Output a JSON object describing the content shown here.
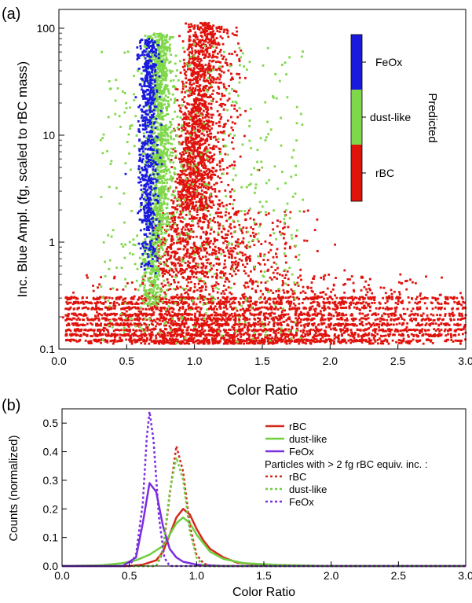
{
  "chart_data": [
    {
      "panel_label": "(a)",
      "type": "scatter",
      "xlabel": "Color Ratio",
      "ylabel": "Inc. Blue Ampl. (fg, scaled to rBC mass)",
      "xlim": [
        0.0,
        3.0
      ],
      "ylim": [
        0.1,
        150
      ],
      "yscale": "log",
      "x_ticks": [
        "0.0",
        "0.5",
        "1.0",
        "1.5",
        "2.0",
        "2.5",
        "3.0"
      ],
      "y_ticks": [
        "0.1",
        "1",
        "10",
        "100"
      ],
      "colorbar": {
        "title": "Predicted",
        "categories": [
          {
            "label": "FeOx",
            "color": "#1a1adf"
          },
          {
            "label": "dust-like",
            "color": "#7fd84a"
          },
          {
            "label": "rBC",
            "color": "#e0120c"
          }
        ]
      },
      "series": [
        {
          "name": "rBC",
          "color": "#e0120c",
          "x_range": [
            0.05,
            3.0
          ],
          "y_range": [
            0.11,
            120
          ],
          "peak_x": 0.95
        },
        {
          "name": "dust-like",
          "color": "#7fd84a",
          "x_range": [
            0.3,
            1.9
          ],
          "y_range": [
            0.12,
            95
          ],
          "peak_x": 0.78
        },
        {
          "name": "FeOx",
          "color": "#1a1adf",
          "x_range": [
            0.55,
            0.75
          ],
          "y_range": [
            0.25,
            80
          ],
          "peak_x": 0.66
        }
      ]
    },
    {
      "panel_label": "(b)",
      "type": "line",
      "xlabel": "Color Ratio",
      "ylabel": "Counts (normalized)",
      "xlim": [
        0.0,
        3.0
      ],
      "ylim": [
        0.0,
        0.55
      ],
      "x_ticks": [
        "0.0",
        "0.5",
        "1.0",
        "1.5",
        "2.0",
        "2.5",
        "3.0"
      ],
      "y_ticks": [
        "0.0",
        "0.1",
        "0.2",
        "0.3",
        "0.4",
        "0.5"
      ],
      "legend_header": "Particles with > 2 fg rBC equiv. inc. :",
      "series": [
        {
          "name": "rBC",
          "style": "solid",
          "color": "#d42a1c",
          "x": [
            0.0,
            0.5,
            0.6,
            0.7,
            0.75,
            0.8,
            0.85,
            0.9,
            0.95,
            1.0,
            1.05,
            1.1,
            1.2,
            1.3,
            1.5,
            2.0,
            3.0
          ],
          "y": [
            0.0,
            0.0,
            0.005,
            0.02,
            0.05,
            0.11,
            0.17,
            0.2,
            0.18,
            0.13,
            0.09,
            0.06,
            0.03,
            0.012,
            0.003,
            0.0,
            0.0
          ]
        },
        {
          "name": "dust-like",
          "style": "solid",
          "color": "#6fcf3d",
          "x": [
            0.0,
            0.3,
            0.45,
            0.55,
            0.65,
            0.75,
            0.8,
            0.85,
            0.9,
            0.95,
            1.0,
            1.05,
            1.1,
            1.2,
            1.35,
            1.6,
            2.0,
            3.0
          ],
          "y": [
            0.0,
            0.003,
            0.01,
            0.02,
            0.04,
            0.07,
            0.11,
            0.15,
            0.17,
            0.15,
            0.11,
            0.08,
            0.05,
            0.025,
            0.01,
            0.004,
            0.0,
            0.0
          ]
        },
        {
          "name": "FeOx",
          "style": "solid",
          "color": "#7a2fe0",
          "x": [
            0.0,
            0.45,
            0.55,
            0.6,
            0.65,
            0.7,
            0.75,
            0.8,
            0.85,
            0.9,
            1.0,
            1.2,
            3.0
          ],
          "y": [
            0.0,
            0.0,
            0.03,
            0.15,
            0.29,
            0.26,
            0.14,
            0.06,
            0.03,
            0.015,
            0.005,
            0.0,
            0.0
          ]
        },
        {
          "name": "rBC",
          "style": "dotted",
          "color": "#d42a1c",
          "x": [
            0.0,
            0.7,
            0.75,
            0.8,
            0.85,
            0.9,
            0.95,
            1.0,
            1.05,
            1.1,
            3.0
          ],
          "y": [
            0.0,
            0.0,
            0.05,
            0.25,
            0.42,
            0.33,
            0.14,
            0.04,
            0.01,
            0.0,
            0.0
          ]
        },
        {
          "name": "dust-like",
          "style": "dotted",
          "color": "#6fcf3d",
          "x": [
            0.0,
            0.7,
            0.75,
            0.8,
            0.85,
            0.9,
            0.95,
            1.0,
            1.05,
            3.0
          ],
          "y": [
            0.0,
            0.0,
            0.06,
            0.26,
            0.38,
            0.3,
            0.12,
            0.03,
            0.0,
            0.0
          ]
        },
        {
          "name": "FeOx",
          "style": "dotted",
          "color": "#7a2fe0",
          "x": [
            0.0,
            0.5,
            0.55,
            0.6,
            0.63,
            0.65,
            0.68,
            0.72,
            0.76,
            0.8,
            3.0
          ],
          "y": [
            0.0,
            0.0,
            0.04,
            0.22,
            0.45,
            0.54,
            0.44,
            0.17,
            0.03,
            0.0,
            0.0
          ]
        }
      ]
    }
  ]
}
